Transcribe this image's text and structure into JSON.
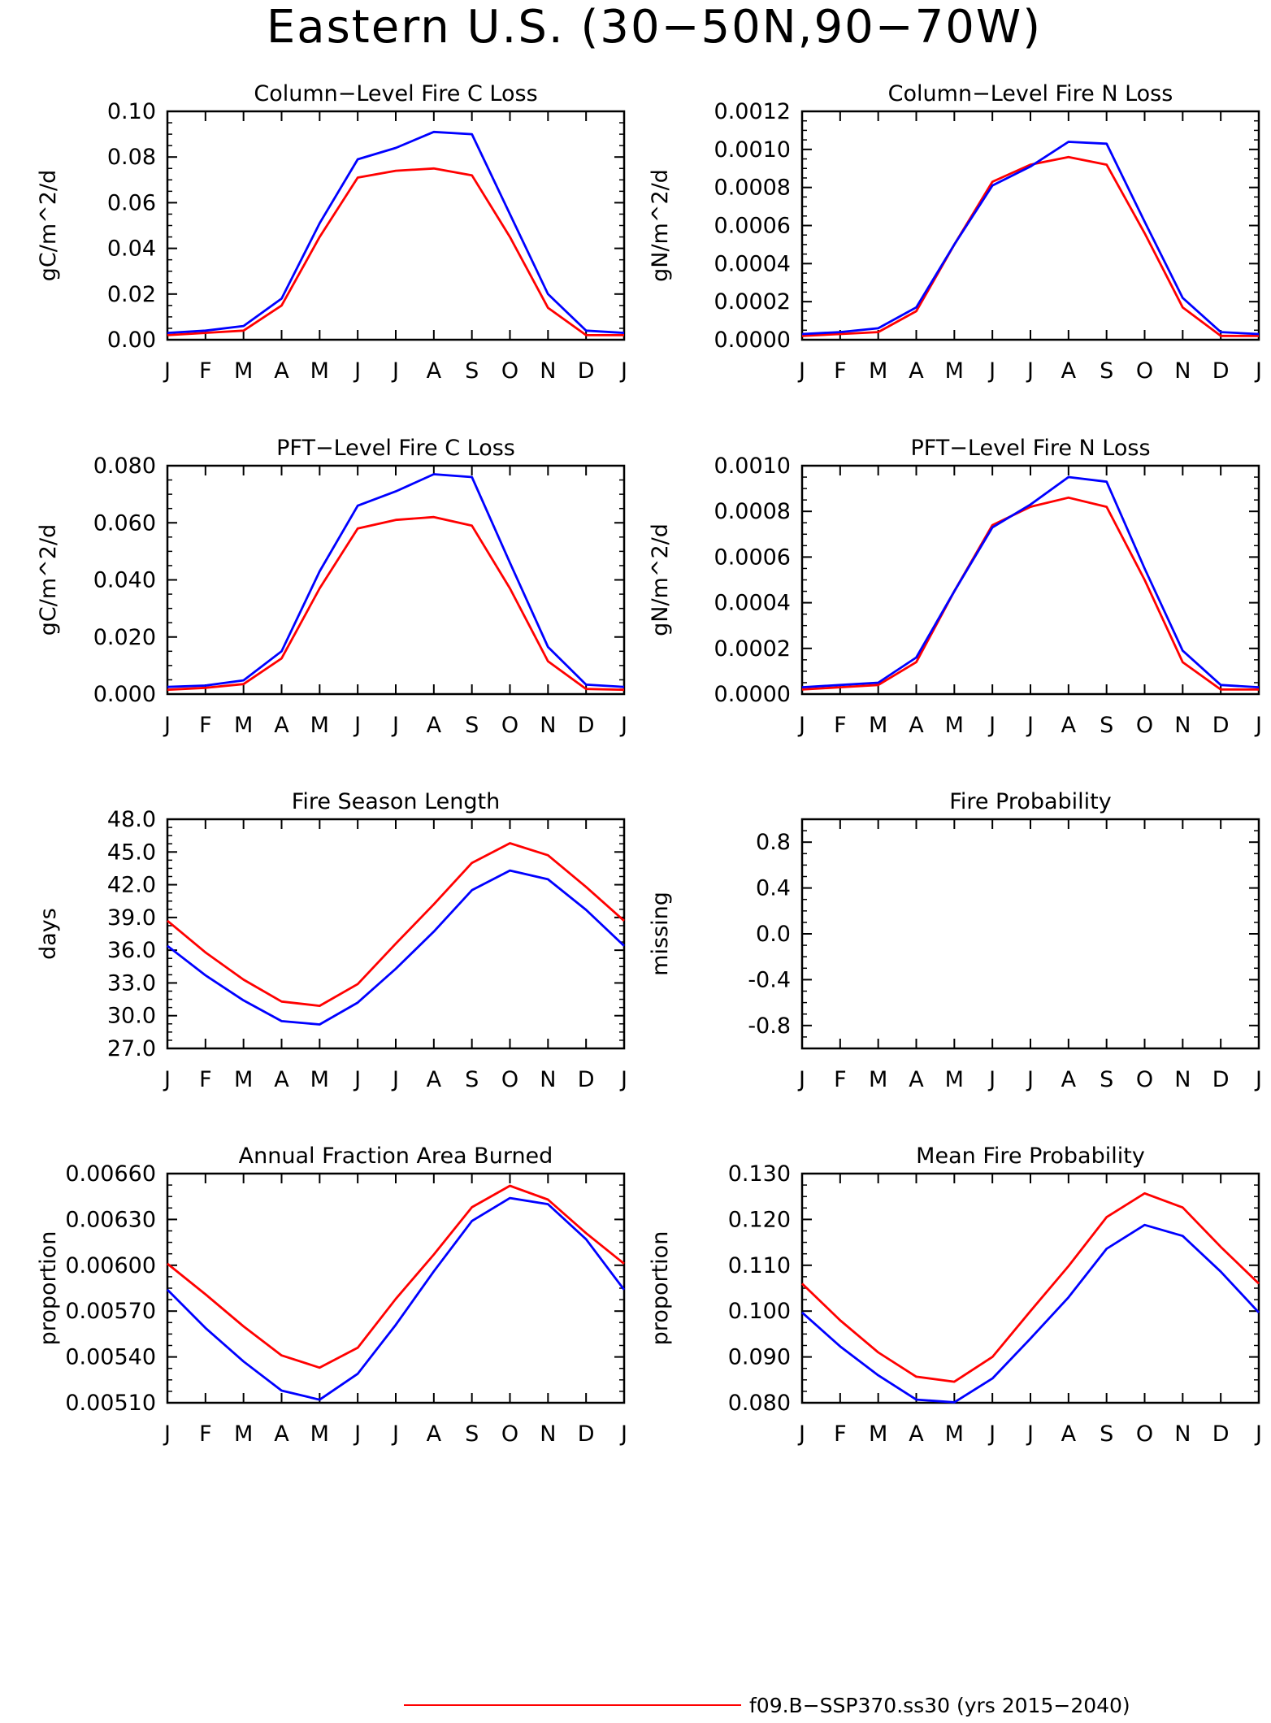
{
  "figure": {
    "title": "Eastern U.S. (30−50N,90−70W)",
    "legend": [
      {
        "label": "f09.B−SSP370.ss30 (yrs 2015−2040)",
        "color": "#ff0000"
      }
    ]
  },
  "colors": {
    "series_red": "#ff0000",
    "series_blue": "#0000ff",
    "axes": "#000000"
  },
  "chart_data": [
    {
      "type": "line",
      "title": "Column−Level Fire C Loss",
      "xlabel": "",
      "ylabel": "gC/m^2/d",
      "categories": [
        "J",
        "F",
        "M",
        "A",
        "M",
        "J",
        "J",
        "A",
        "S",
        "O",
        "N",
        "D",
        "J"
      ],
      "ylim": [
        0,
        0.1
      ],
      "yticks": [
        "0.00",
        "0.02",
        "0.04",
        "0.06",
        "0.08",
        "0.10"
      ],
      "series": [
        {
          "color": "#ff0000",
          "values": [
            0.002,
            0.003,
            0.004,
            0.015,
            0.045,
            0.071,
            0.074,
            0.075,
            0.072,
            0.045,
            0.014,
            0.002,
            0.002
          ]
        },
        {
          "color": "#0000ff",
          "values": [
            0.003,
            0.004,
            0.006,
            0.018,
            0.051,
            0.079,
            0.084,
            0.091,
            0.09,
            0.055,
            0.02,
            0.004,
            0.003
          ]
        }
      ]
    },
    {
      "type": "line",
      "title": "Column−Level Fire N Loss",
      "xlabel": "",
      "ylabel": "gN/m^2/d",
      "categories": [
        "J",
        "F",
        "M",
        "A",
        "M",
        "J",
        "J",
        "A",
        "S",
        "O",
        "N",
        "D",
        "J"
      ],
      "ylim": [
        0,
        0.0012
      ],
      "yticks": [
        "0.0000",
        "0.0002",
        "0.0004",
        "0.0006",
        "0.0008",
        "0.0010",
        "0.0012"
      ],
      "series": [
        {
          "color": "#ff0000",
          "values": [
            2e-05,
            3e-05,
            4e-05,
            0.00015,
            0.0005,
            0.00083,
            0.00092,
            0.00096,
            0.00092,
            0.00056,
            0.00017,
            2e-05,
            2e-05
          ]
        },
        {
          "color": "#0000ff",
          "values": [
            3e-05,
            4e-05,
            6e-05,
            0.00017,
            0.0005,
            0.00081,
            0.00091,
            0.00104,
            0.00103,
            0.00062,
            0.00022,
            4e-05,
            3e-05
          ]
        }
      ]
    },
    {
      "type": "line",
      "title": "PFT−Level Fire C Loss",
      "xlabel": "",
      "ylabel": "gC/m^2/d",
      "categories": [
        "J",
        "F",
        "M",
        "A",
        "M",
        "J",
        "J",
        "A",
        "S",
        "O",
        "N",
        "D",
        "J"
      ],
      "ylim": [
        0,
        0.08
      ],
      "yticks": [
        "0.000",
        "0.020",
        "0.040",
        "0.060",
        "0.080"
      ],
      "series": [
        {
          "color": "#ff0000",
          "values": [
            0.0015,
            0.0022,
            0.0035,
            0.0125,
            0.037,
            0.058,
            0.061,
            0.062,
            0.059,
            0.037,
            0.0115,
            0.0018,
            0.0015
          ]
        },
        {
          "color": "#0000ff",
          "values": [
            0.0025,
            0.003,
            0.0048,
            0.015,
            0.043,
            0.066,
            0.071,
            0.077,
            0.076,
            0.046,
            0.0165,
            0.0033,
            0.0025
          ]
        }
      ]
    },
    {
      "type": "line",
      "title": "PFT−Level Fire N Loss",
      "xlabel": "",
      "ylabel": "gN/m^2/d",
      "categories": [
        "J",
        "F",
        "M",
        "A",
        "M",
        "J",
        "J",
        "A",
        "S",
        "O",
        "N",
        "D",
        "J"
      ],
      "ylim": [
        0,
        0.001
      ],
      "yticks": [
        "0.0000",
        "0.0002",
        "0.0004",
        "0.0006",
        "0.0008",
        "0.0010"
      ],
      "series": [
        {
          "color": "#ff0000",
          "values": [
            2e-05,
            3e-05,
            4e-05,
            0.00014,
            0.00045,
            0.00074,
            0.00082,
            0.00086,
            0.00082,
            0.0005,
            0.00014,
            2e-05,
            2e-05
          ]
        },
        {
          "color": "#0000ff",
          "values": [
            3e-05,
            4e-05,
            5e-05,
            0.00016,
            0.00045,
            0.00073,
            0.00083,
            0.00095,
            0.00093,
            0.00055,
            0.00019,
            4e-05,
            3e-05
          ]
        }
      ]
    },
    {
      "type": "line",
      "title": "Fire Season Length",
      "xlabel": "",
      "ylabel": "days",
      "categories": [
        "J",
        "F",
        "M",
        "A",
        "M",
        "J",
        "J",
        "A",
        "S",
        "O",
        "N",
        "D",
        "J"
      ],
      "ylim": [
        27.0,
        48.0
      ],
      "yticks": [
        "27.0",
        "30.0",
        "33.0",
        "36.0",
        "39.0",
        "42.0",
        "45.0",
        "48.0"
      ],
      "series": [
        {
          "color": "#ff0000",
          "values": [
            38.7,
            35.8,
            33.3,
            31.3,
            30.9,
            32.9,
            36.6,
            40.2,
            44.0,
            45.8,
            44.7,
            41.8,
            38.7
          ]
        },
        {
          "color": "#0000ff",
          "values": [
            36.4,
            33.7,
            31.4,
            29.5,
            29.2,
            31.2,
            34.3,
            37.7,
            41.5,
            43.3,
            42.5,
            39.7,
            36.4
          ]
        }
      ]
    },
    {
      "type": "line",
      "title": "Fire Probability",
      "xlabel": "",
      "ylabel": "missing",
      "categories": [
        "J",
        "F",
        "M",
        "A",
        "M",
        "J",
        "J",
        "A",
        "S",
        "O",
        "N",
        "D",
        "J"
      ],
      "ylim": [
        -1.0,
        1.0
      ],
      "yticks": [
        "-0.8",
        "-0.4",
        "0.0",
        "0.4",
        "0.8"
      ],
      "series": []
    },
    {
      "type": "line",
      "title": "Annual Fraction Area Burned",
      "xlabel": "",
      "ylabel": "proportion",
      "categories": [
        "J",
        "F",
        "M",
        "A",
        "M",
        "J",
        "J",
        "A",
        "S",
        "O",
        "N",
        "D",
        "J"
      ],
      "ylim": [
        0.0051,
        0.0066
      ],
      "yticks": [
        "0.00510",
        "0.00540",
        "0.00570",
        "0.00600",
        "0.00630",
        "0.00660"
      ],
      "series": [
        {
          "color": "#ff0000",
          "values": [
            0.00601,
            0.00581,
            0.0056,
            0.00541,
            0.00533,
            0.00546,
            0.00578,
            0.00607,
            0.00638,
            0.00652,
            0.00643,
            0.00621,
            0.00601
          ]
        },
        {
          "color": "#0000ff",
          "values": [
            0.00584,
            0.00559,
            0.00537,
            0.00518,
            0.00512,
            0.00529,
            0.00561,
            0.00596,
            0.00629,
            0.00644,
            0.0064,
            0.00617,
            0.00584
          ]
        }
      ]
    },
    {
      "type": "line",
      "title": "Mean Fire Probability",
      "xlabel": "",
      "ylabel": "proportion",
      "categories": [
        "J",
        "F",
        "M",
        "A",
        "M",
        "J",
        "J",
        "A",
        "S",
        "O",
        "N",
        "D",
        "J"
      ],
      "ylim": [
        0.08,
        0.13
      ],
      "yticks": [
        "0.080",
        "0.090",
        "0.100",
        "0.110",
        "0.120",
        "0.130"
      ],
      "series": [
        {
          "color": "#ff0000",
          "values": [
            0.106,
            0.098,
            0.091,
            0.0857,
            0.0846,
            0.09,
            0.1,
            0.1098,
            0.1205,
            0.1257,
            0.1226,
            0.114,
            0.106
          ]
        },
        {
          "color": "#0000ff",
          "values": [
            0.0997,
            0.0923,
            0.086,
            0.0807,
            0.0801,
            0.0853,
            0.094,
            0.103,
            0.1136,
            0.1188,
            0.1164,
            0.1086,
            0.0997
          ]
        }
      ]
    }
  ]
}
